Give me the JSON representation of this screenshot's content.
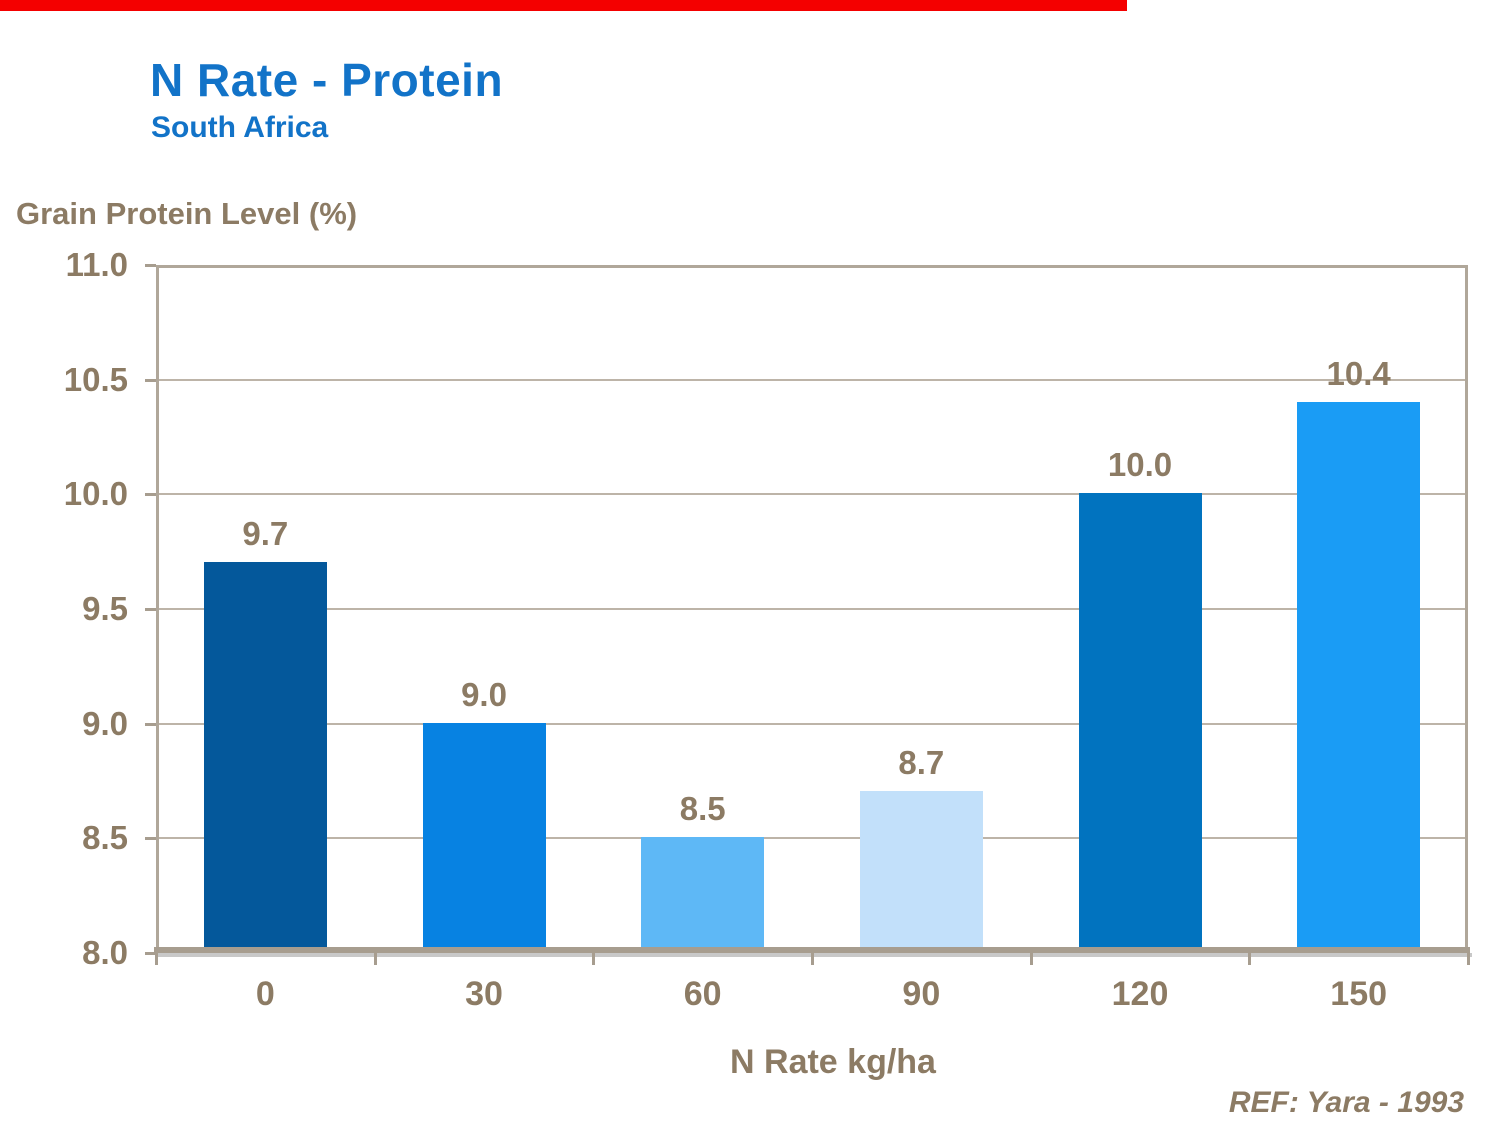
{
  "header": {
    "title": "N Rate - Protein",
    "subtitle": "South Africa",
    "accent_color": "#1273C8",
    "top_bar_color": "#F40000"
  },
  "footer": {
    "ref": "REF: Yara - 1993"
  },
  "chart_data": {
    "type": "bar",
    "title": "N Rate - Protein",
    "subtitle": "South Africa",
    "categories": [
      "0",
      "30",
      "60",
      "90",
      "120",
      "150"
    ],
    "values": [
      9.7,
      9.0,
      8.5,
      8.7,
      10.0,
      10.4
    ],
    "data_labels": [
      "9.7",
      "9.0",
      "8.5",
      "8.7",
      "10.0",
      "10.4"
    ],
    "bar_colors": [
      "#04589B",
      "#0782E2",
      "#5EB8F6",
      "#C2E0FA",
      "#0173BF",
      "#1A9CF5"
    ],
    "xlabel": "N Rate kg/ha",
    "ylabel": "Grain Protein Level (%)",
    "ylim": [
      8.0,
      11.0
    ],
    "ytick_step": 0.5,
    "ytick_labels": [
      "8.0",
      "8.5",
      "9.0",
      "9.5",
      "10.0",
      "10.5",
      "11.0"
    ],
    "grid": true,
    "legend": "none",
    "text_color": "#8C7B64",
    "gridline_color": "#BDB4A8",
    "axis_color": "#A79D8F",
    "plot_border_color": "#B0A79A"
  }
}
